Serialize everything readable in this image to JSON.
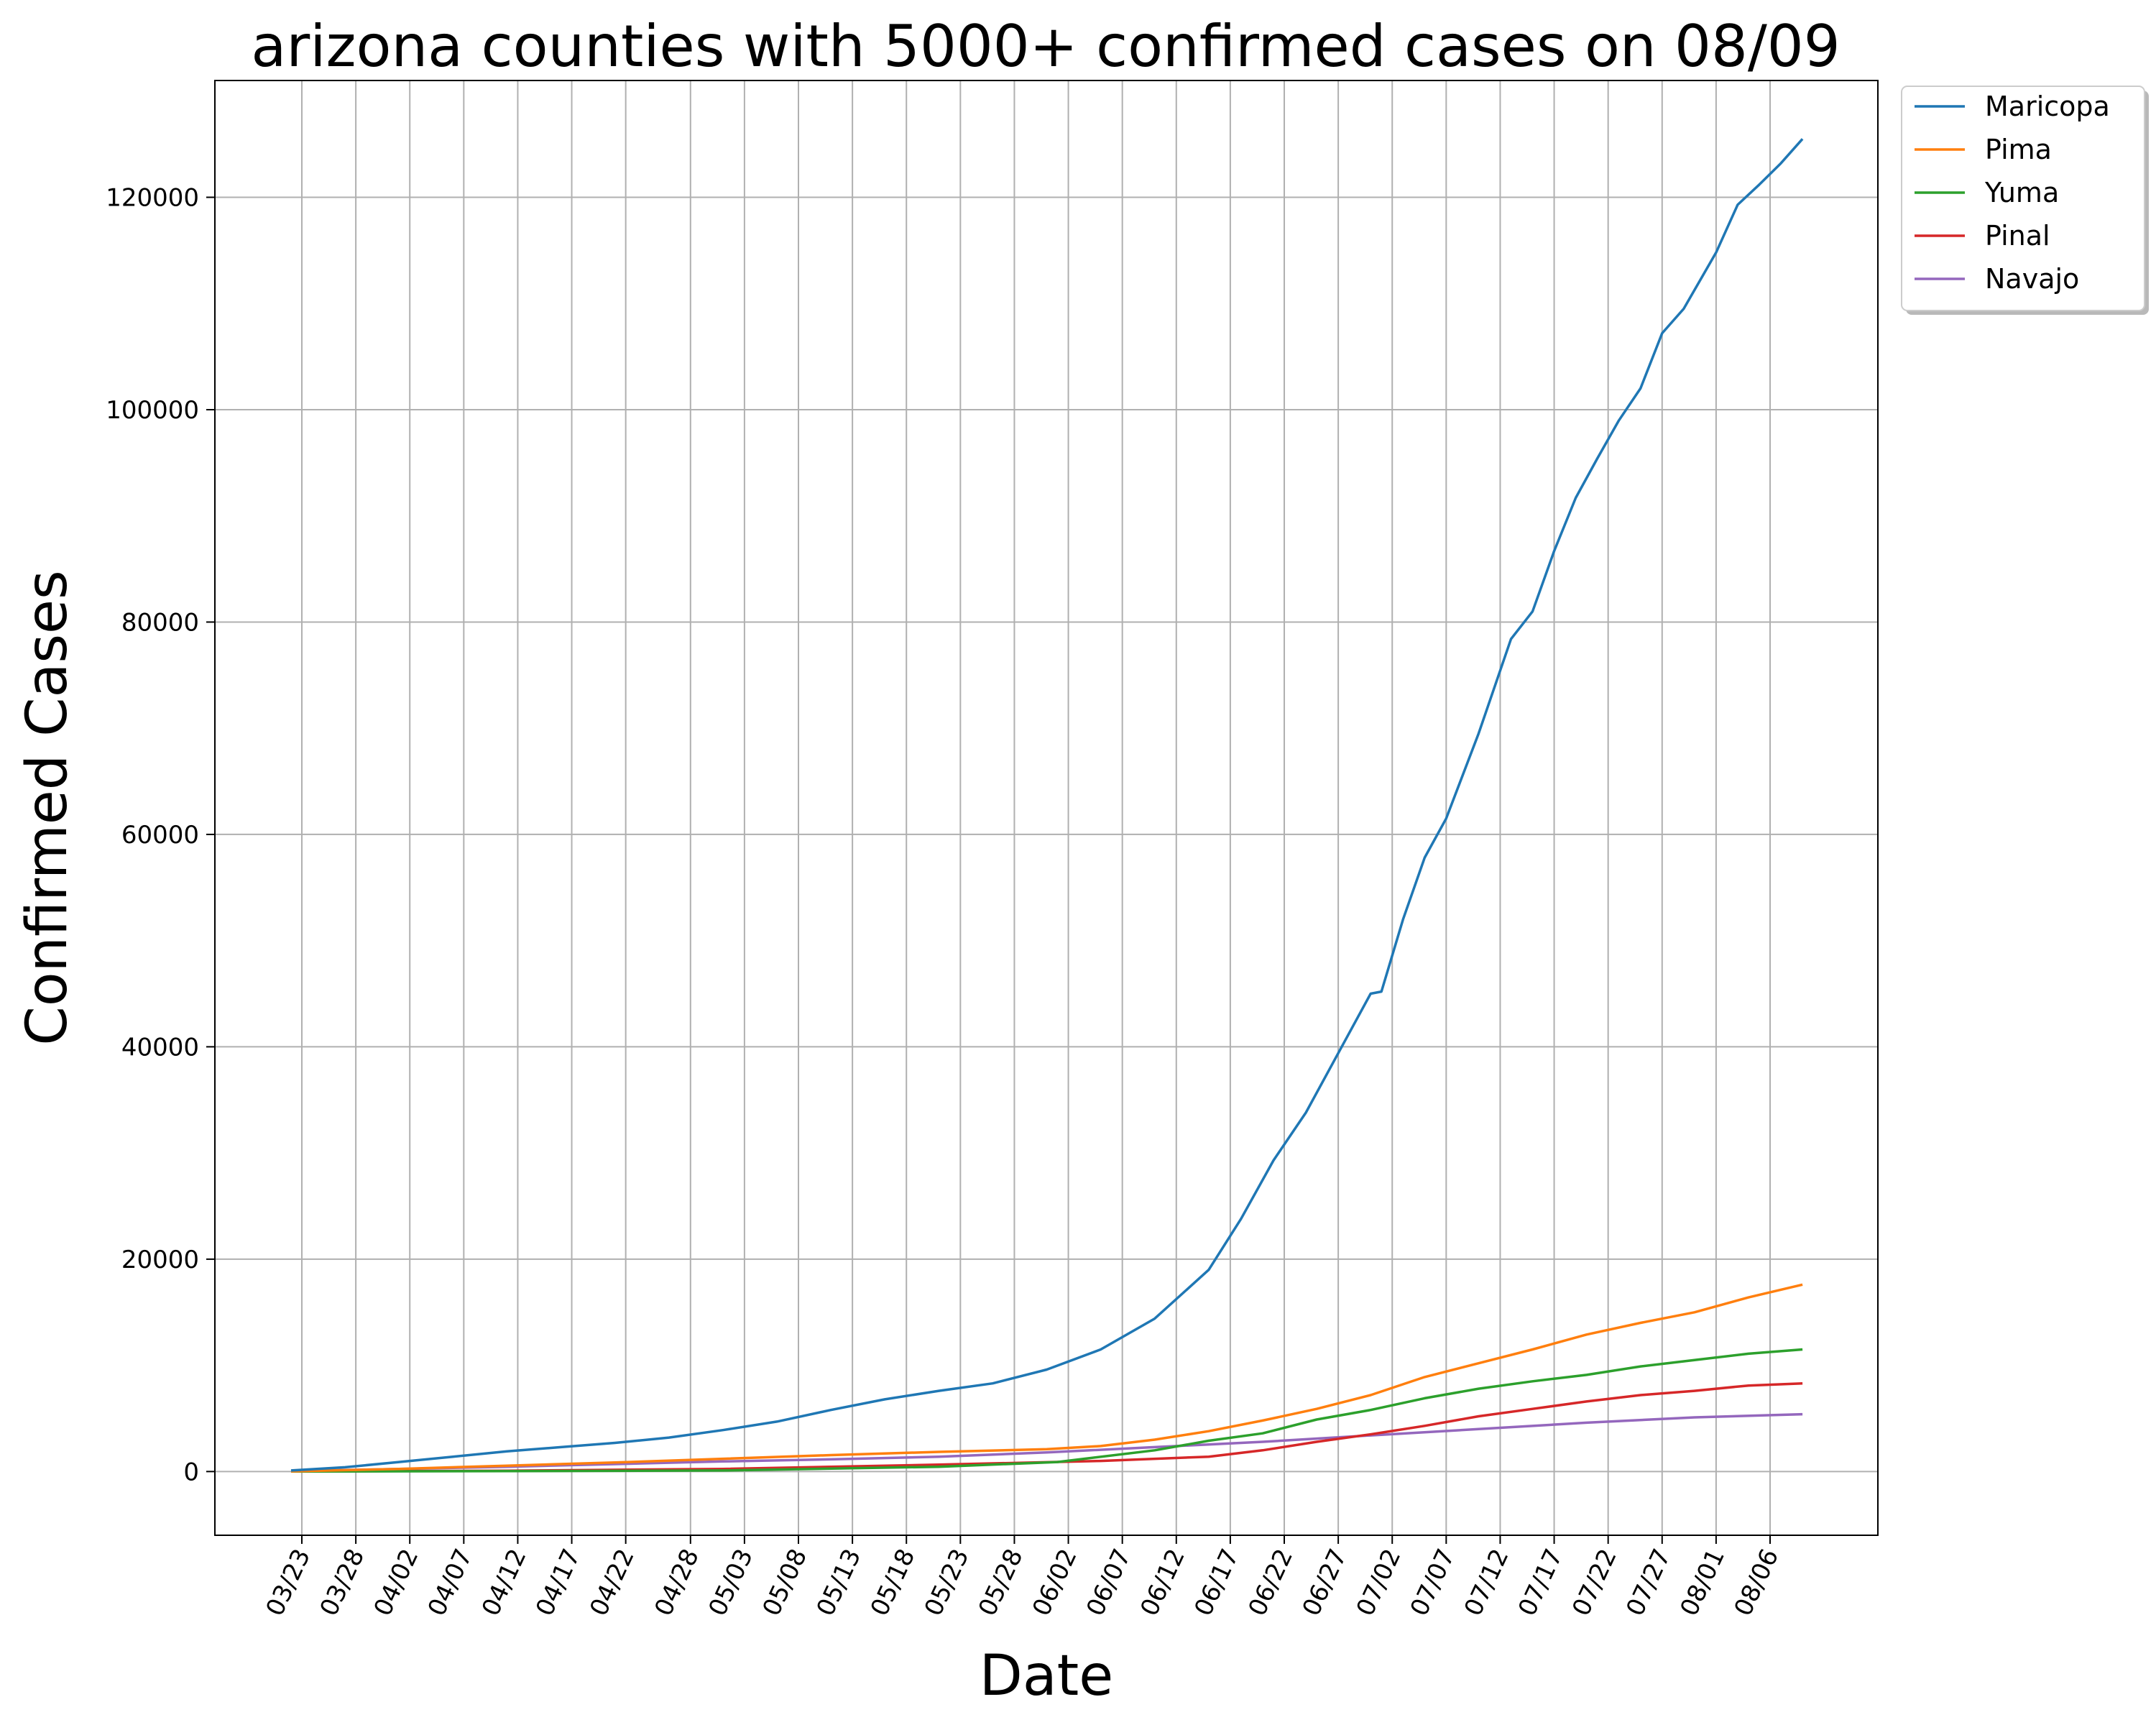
{
  "chart_data": {
    "type": "line",
    "title": "arizona counties with 5000+ confirmed cases on 08/09",
    "xlabel": "Date",
    "ylabel": "Confirmed Cases",
    "grid": true,
    "legend_position": "outside-top-right",
    "x_tick_labels": [
      "03/23",
      "03/28",
      "04/02",
      "04/07",
      "04/12",
      "04/17",
      "04/22",
      "04/28",
      "05/03",
      "05/08",
      "05/13",
      "05/18",
      "05/23",
      "05/28",
      "06/02",
      "06/07",
      "06/12",
      "06/17",
      "06/22",
      "06/27",
      "07/02",
      "07/07",
      "07/12",
      "07/17",
      "07/22",
      "07/27",
      "08/01",
      "08/06"
    ],
    "y_ticks": [
      0,
      20000,
      40000,
      60000,
      80000,
      100000,
      120000
    ],
    "y_tick_labels": [
      "0",
      "20000",
      "40000",
      "60000",
      "80000",
      "100000",
      "120000"
    ],
    "ylim": [
      -6000,
      131000
    ],
    "series": [
      {
        "name": "Maricopa",
        "color": "#1f77b4",
        "points": [
          [
            "03/22",
            100
          ],
          [
            "03/27",
            400
          ],
          [
            "04/01",
            900
          ],
          [
            "04/06",
            1400
          ],
          [
            "04/11",
            1900
          ],
          [
            "04/16",
            2300
          ],
          [
            "04/21",
            2700
          ],
          [
            "04/26",
            3200
          ],
          [
            "05/01",
            3900
          ],
          [
            "05/06",
            4700
          ],
          [
            "05/11",
            5800
          ],
          [
            "05/16",
            6800
          ],
          [
            "05/21",
            7600
          ],
          [
            "05/26",
            8300
          ],
          [
            "05/31",
            9600
          ],
          [
            "06/05",
            11500
          ],
          [
            "06/10",
            14400
          ],
          [
            "06/15",
            19000
          ],
          [
            "06/18",
            23800
          ],
          [
            "06/21",
            29300
          ],
          [
            "06/24",
            33800
          ],
          [
            "06/27",
            39400
          ],
          [
            "06/30",
            45000
          ],
          [
            "07/01",
            45200
          ],
          [
            "07/03",
            52000
          ],
          [
            "07/05",
            57800
          ],
          [
            "07/07",
            61500
          ],
          [
            "07/10",
            69500
          ],
          [
            "07/13",
            78400
          ],
          [
            "07/15",
            81000
          ],
          [
            "07/17",
            86700
          ],
          [
            "07/19",
            91700
          ],
          [
            "07/21",
            95400
          ],
          [
            "07/23",
            99000
          ],
          [
            "07/25",
            102000
          ],
          [
            "07/27",
            107200
          ],
          [
            "07/29",
            109500
          ],
          [
            "08/01",
            114800
          ],
          [
            "08/03",
            119300
          ],
          [
            "08/05",
            121200
          ],
          [
            "08/07",
            123200
          ],
          [
            "08/09",
            125500
          ]
        ]
      },
      {
        "name": "Pima",
        "color": "#ff7f0e",
        "points": [
          [
            "03/22",
            20
          ],
          [
            "04/01",
            250
          ],
          [
            "04/11",
            550
          ],
          [
            "04/21",
            850
          ],
          [
            "05/01",
            1200
          ],
          [
            "05/11",
            1550
          ],
          [
            "05/21",
            1850
          ],
          [
            "05/31",
            2100
          ],
          [
            "06/05",
            2400
          ],
          [
            "06/10",
            3000
          ],
          [
            "06/15",
            3800
          ],
          [
            "06/20",
            4800
          ],
          [
            "06/25",
            5900
          ],
          [
            "06/30",
            7200
          ],
          [
            "07/05",
            8900
          ],
          [
            "07/10",
            10200
          ],
          [
            "07/15",
            11500
          ],
          [
            "07/20",
            12900
          ],
          [
            "07/25",
            14000
          ],
          [
            "07/30",
            15000
          ],
          [
            "08/04",
            16400
          ],
          [
            "08/09",
            17600
          ]
        ]
      },
      {
        "name": "Yuma",
        "color": "#2ca02c",
        "points": [
          [
            "03/22",
            5
          ],
          [
            "04/11",
            40
          ],
          [
            "05/01",
            100
          ],
          [
            "05/21",
            450
          ],
          [
            "06/01",
            900
          ],
          [
            "06/10",
            2000
          ],
          [
            "06/15",
            2900
          ],
          [
            "06/20",
            3600
          ],
          [
            "06/25",
            4900
          ],
          [
            "06/30",
            5800
          ],
          [
            "07/05",
            6900
          ],
          [
            "07/10",
            7800
          ],
          [
            "07/15",
            8500
          ],
          [
            "07/20",
            9100
          ],
          [
            "07/25",
            9900
          ],
          [
            "07/30",
            10500
          ],
          [
            "08/04",
            11100
          ],
          [
            "08/09",
            11500
          ]
        ]
      },
      {
        "name": "Pinal",
        "color": "#d62728",
        "points": [
          [
            "03/22",
            5
          ],
          [
            "04/11",
            80
          ],
          [
            "05/01",
            250
          ],
          [
            "05/21",
            650
          ],
          [
            "06/05",
            1000
          ],
          [
            "06/15",
            1400
          ],
          [
            "06/20",
            2000
          ],
          [
            "06/25",
            2800
          ],
          [
            "06/30",
            3500
          ],
          [
            "07/05",
            4300
          ],
          [
            "07/10",
            5200
          ],
          [
            "07/15",
            5900
          ],
          [
            "07/20",
            6600
          ],
          [
            "07/25",
            7200
          ],
          [
            "07/30",
            7600
          ],
          [
            "08/04",
            8100
          ],
          [
            "08/09",
            8300
          ]
        ]
      },
      {
        "name": "Navajo",
        "color": "#9467bd",
        "points": [
          [
            "03/22",
            30
          ],
          [
            "04/01",
            250
          ],
          [
            "04/11",
            450
          ],
          [
            "04/21",
            700
          ],
          [
            "05/01",
            950
          ],
          [
            "05/11",
            1150
          ],
          [
            "05/21",
            1400
          ],
          [
            "05/31",
            1800
          ],
          [
            "06/10",
            2300
          ],
          [
            "06/20",
            2800
          ],
          [
            "06/30",
            3400
          ],
          [
            "07/10",
            4000
          ],
          [
            "07/20",
            4600
          ],
          [
            "07/30",
            5100
          ],
          [
            "08/09",
            5400
          ]
        ]
      }
    ]
  }
}
